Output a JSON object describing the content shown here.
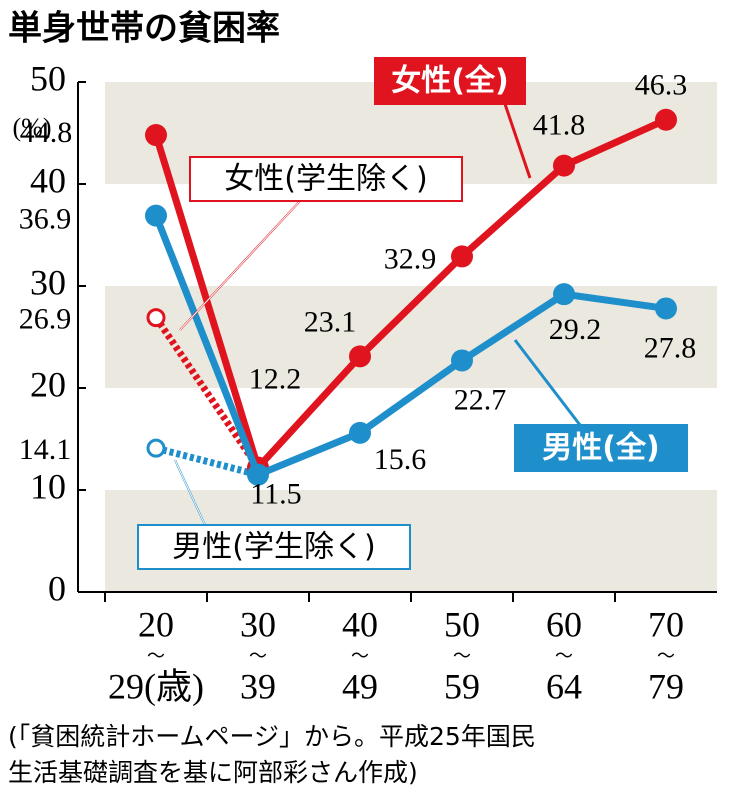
{
  "chart_data": {
    "type": "line",
    "title": "単身世帯の貧困率",
    "y_unit": "(%)",
    "categories": [
      [
        "20",
        "〜",
        "29(歳)"
      ],
      [
        "30",
        "〜",
        "39"
      ],
      [
        "40",
        "〜",
        "49"
      ],
      [
        "50",
        "〜",
        "59"
      ],
      [
        "60",
        "〜",
        "64"
      ],
      [
        "70",
        "〜",
        "79"
      ]
    ],
    "series": [
      {
        "name": "女性(全)",
        "color": "#e0141e",
        "dashed": false,
        "values": [
          44.8,
          12.2,
          23.1,
          32.9,
          41.8,
          46.3
        ]
      },
      {
        "name": "男性(全)",
        "color": "#1e8fcb",
        "dashed": false,
        "values": [
          36.9,
          11.5,
          15.6,
          22.7,
          29.2,
          27.8
        ]
      },
      {
        "name": "女性(学生除く)",
        "color": "#e0141e",
        "dashed": true,
        "values": [
          26.9,
          12.2,
          null,
          null,
          null,
          null
        ]
      },
      {
        "name": "男性(学生除く)",
        "color": "#1e8fcb",
        "dashed": true,
        "values": [
          14.1,
          11.5,
          null,
          null,
          null,
          null
        ]
      }
    ],
    "ylim": [
      0,
      50
    ],
    "yticks": [
      0,
      10,
      20,
      30,
      40,
      50
    ],
    "bands": true,
    "band_color": "#ebe9df",
    "source": [
      "(「貧困統計ホームページ」から。平成25年国民",
      "生活基礎調査を基に阿部彩さん作成)"
    ]
  }
}
